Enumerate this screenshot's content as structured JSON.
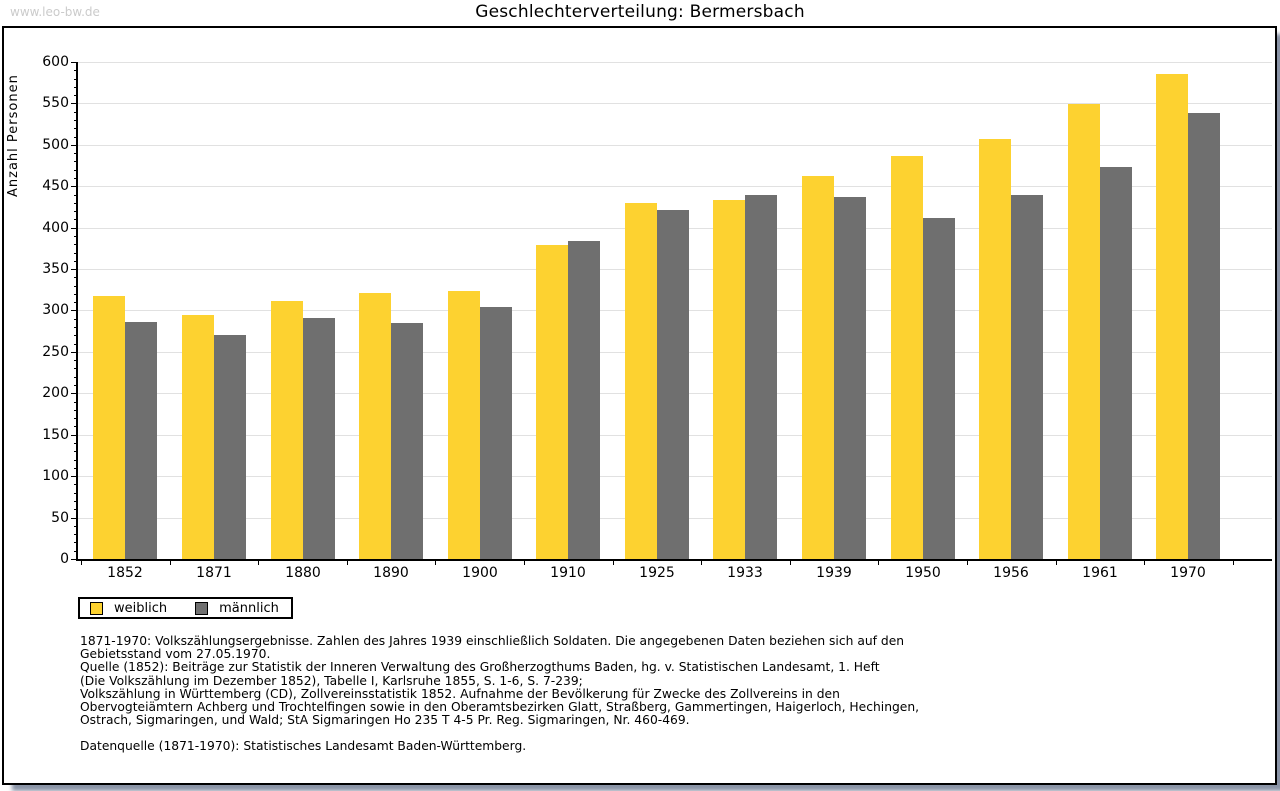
{
  "watermark": "www.leo-bw.de",
  "title": "Geschlechterverteilung: Bermersbach",
  "chart_data": {
    "type": "bar",
    "title": "Geschlechterverteilung: Bermersbach",
    "xlabel": "",
    "ylabel": "Anzahl Personen",
    "ylim": [
      0,
      600
    ],
    "ytick_step": 50,
    "y_minor_tick_step": 10,
    "grid": true,
    "legend_position": "bottom-left",
    "categories": [
      "1852",
      "1871",
      "1880",
      "1890",
      "1900",
      "1910",
      "1925",
      "1933",
      "1939",
      "1950",
      "1956",
      "1961",
      "1970"
    ],
    "series": [
      {
        "name": "weiblich",
        "color": "#fdd230",
        "values": [
          317,
          294,
          312,
          321,
          324,
          379,
          430,
          433,
          462,
          486,
          507,
          549,
          586
        ]
      },
      {
        "name": "männlich",
        "color": "#6f6f6f",
        "values": [
          286,
          271,
          291,
          285,
          304,
          384,
          421,
          439,
          437,
          412,
          439,
          473,
          538
        ]
      }
    ]
  },
  "footnotes": {
    "lines": [
      "1871-1970: Volkszählungsergebnisse. Zahlen des Jahres 1939 einschließlich Soldaten. Die angegebenen Daten beziehen sich auf den",
      "Gebietsstand vom 27.05.1970.",
      "Quelle (1852): Beiträge zur Statistik der Inneren Verwaltung des Großherzogthums Baden, hg. v. Statistischen Landesamt, 1. Heft",
      "(Die Volkszählung im Dezember 1852), Tabelle I, Karlsruhe 1855, S. 1-6, S. 7-239;",
      "Volkszählung in Württemberg (CD), Zollvereinsstatistik 1852. Aufnahme der Bevölkerung für Zwecke des Zollvereins in den",
      "Obervogteiämtern Achberg und Trochtelfingen sowie in den Oberamtsbezirken Glatt, Straßberg, Gammertingen, Haigerloch, Hechingen,",
      "Ostrach, Sigmaringen, und Wald; StA Sigmaringen Ho 235 T 4-5 Pr. Reg. Sigmaringen, Nr. 460-469."
    ],
    "datasource": "Datenquelle (1871-1970): Statistisches Landesamt Baden-Württemberg."
  },
  "colors": {
    "axis": "#000000",
    "gridline": "#e1e1e1",
    "watermark": "#cbcbcb",
    "frame_shadow": "#7d8a9e",
    "background": "#ffffff"
  }
}
